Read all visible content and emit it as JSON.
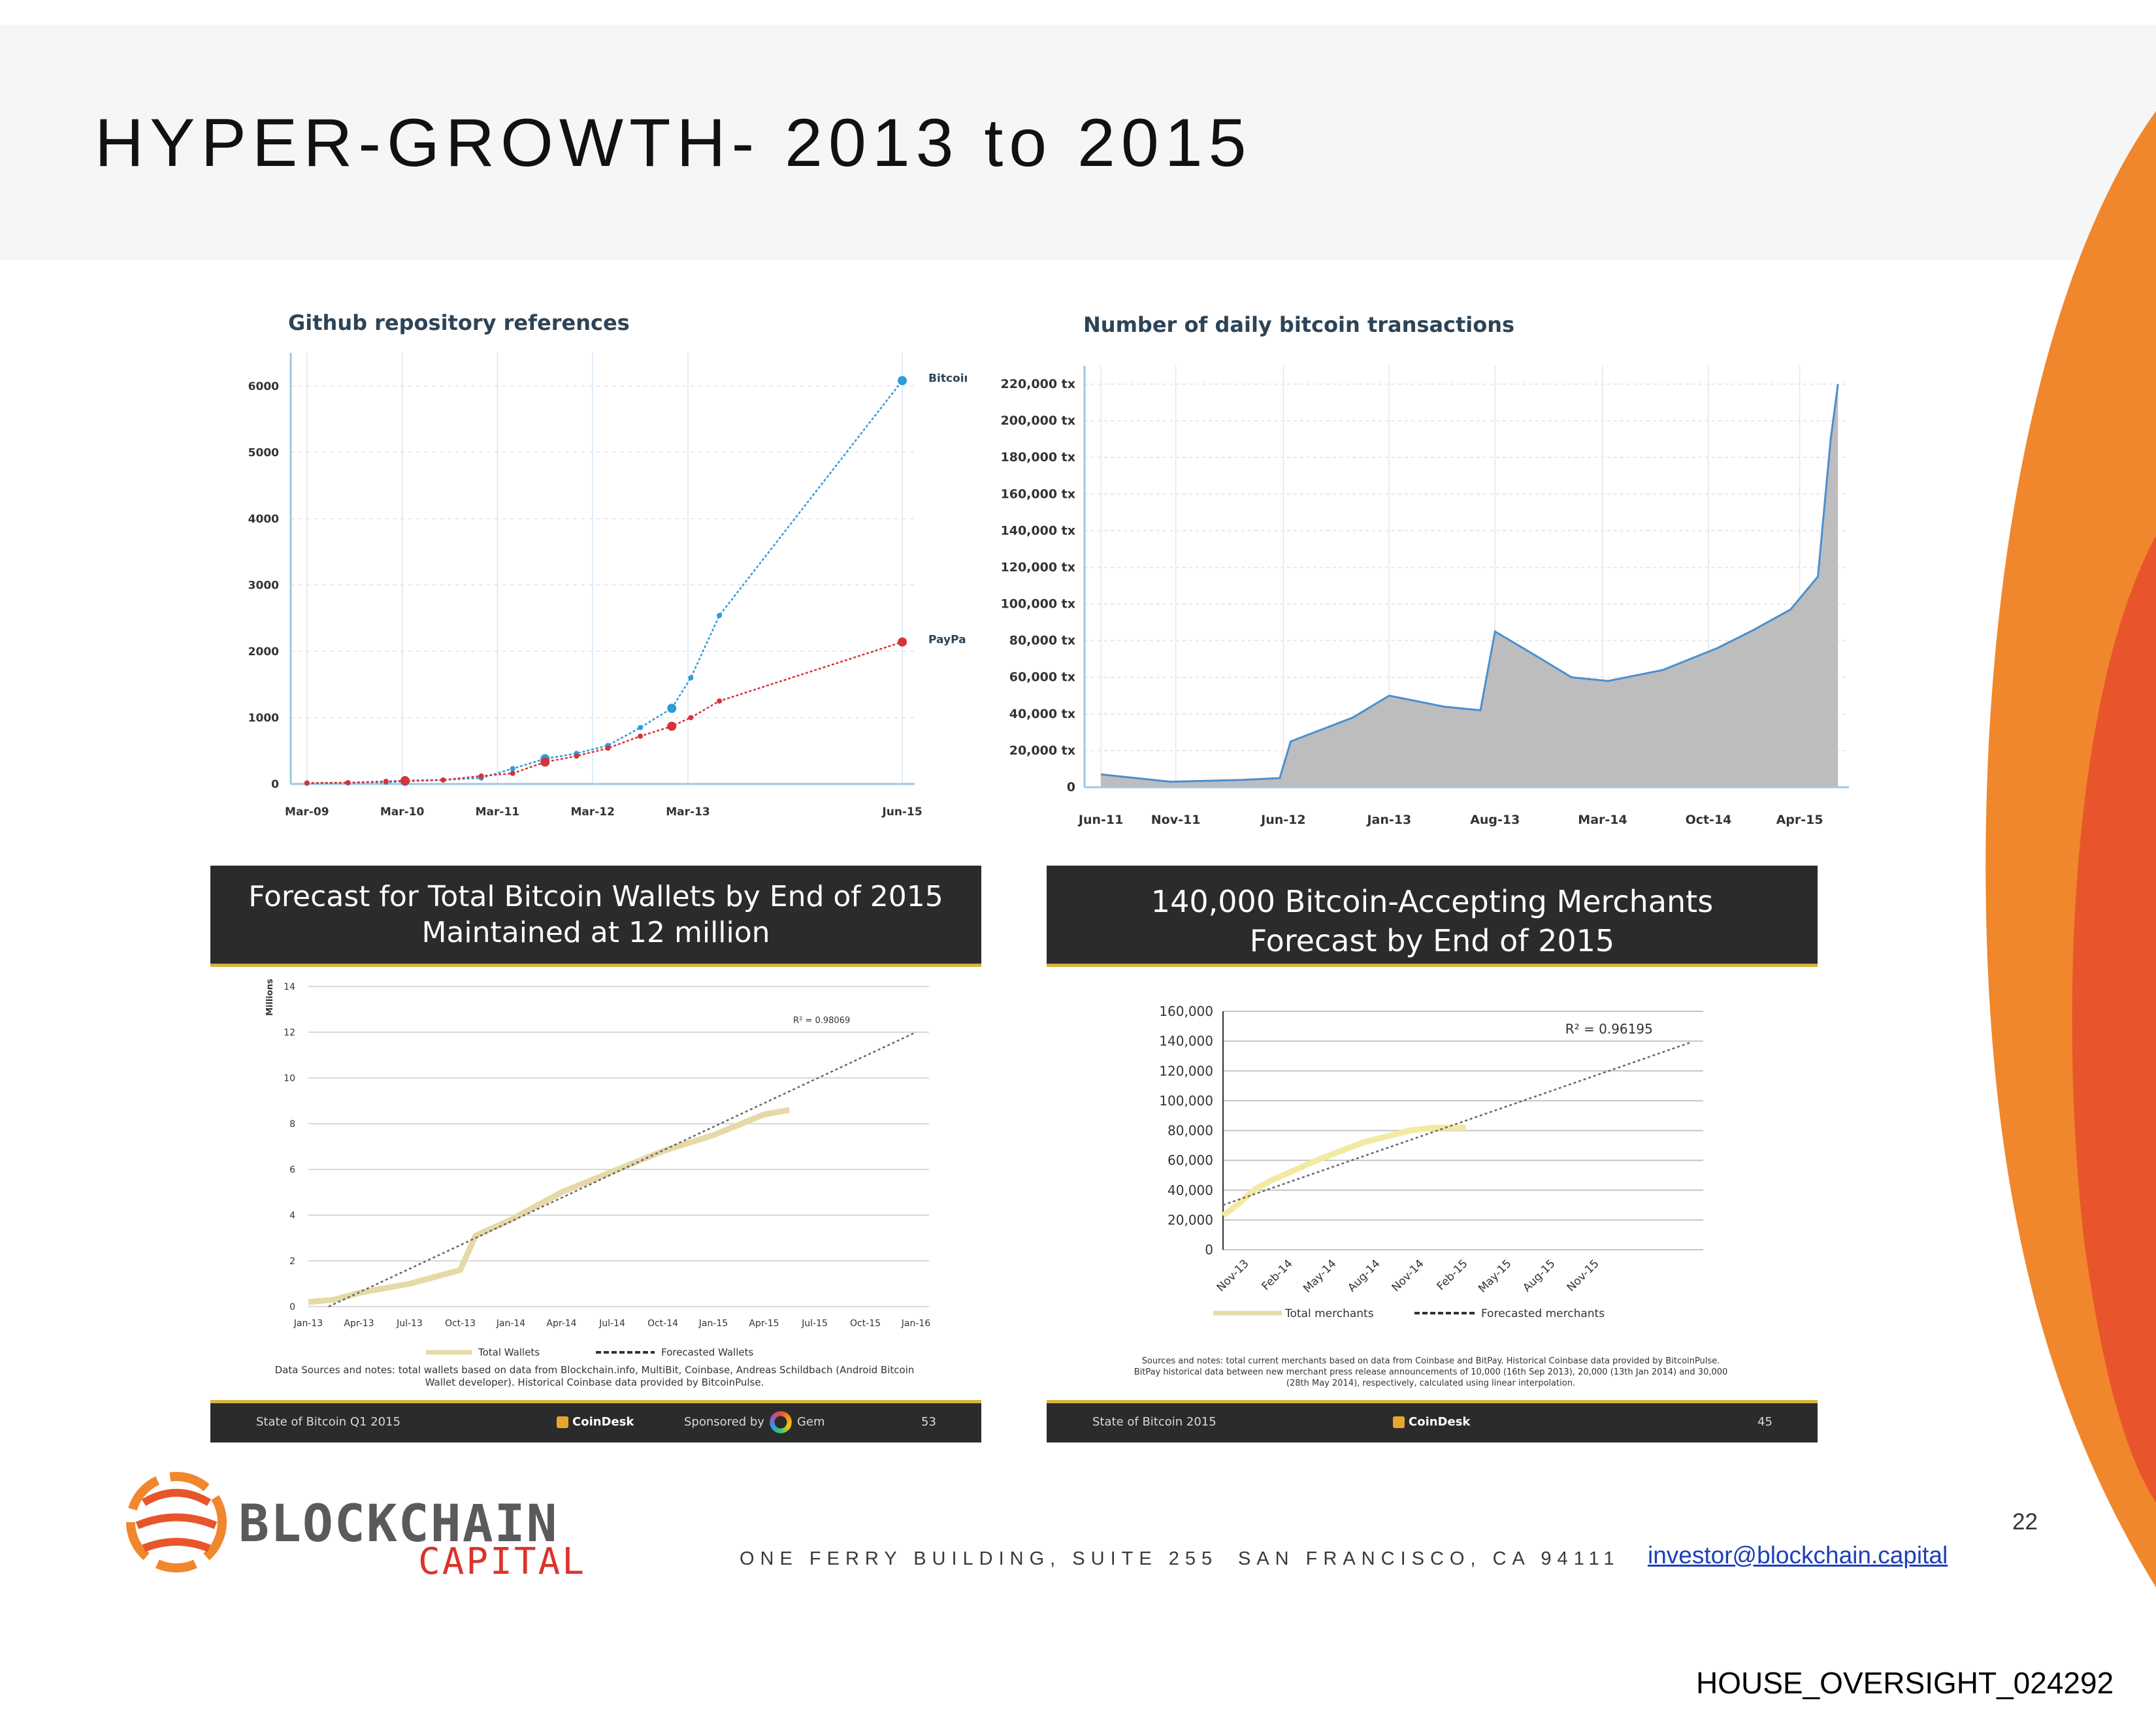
{
  "slide": {
    "title": "HYPER-GROWTH- 2013 to 2015",
    "page_number": "22",
    "doc_id": "HOUSE_OVERSIGHT_024292"
  },
  "colors": {
    "orange": "#f0872c",
    "red_orange": "#e8552c",
    "bitcoin_blue": "#2f9bd8",
    "paypal_red": "#d6333a",
    "gold": "#d7b23a",
    "dark_panel": "#2b2b2b"
  },
  "footer": {
    "logo_word1": "BLOCKCHAIN",
    "logo_word2": "CAPITAL",
    "address1": "ONE FERRY BUILDING, SUITE 255",
    "address2": "SAN FRANCISCO, CA 94111",
    "email": "investor@blockchain.capital"
  },
  "chart_data": [
    {
      "type": "line",
      "title": "Github repository references",
      "x_tick_labels": [
        "Mar-09",
        "Mar-10",
        "Mar-11",
        "Mar-12",
        "Mar-13",
        "Jun-15"
      ],
      "y_tick_labels": [
        "0",
        "1000",
        "2000",
        "3000",
        "4000",
        "5000",
        "6000"
      ],
      "ylim": [
        0,
        6500
      ],
      "series": [
        {
          "name": "Bitcoin",
          "x": [
            2009.17,
            2009.6,
            2010.0,
            2010.2,
            2010.6,
            2011.0,
            2011.33,
            2011.67,
            2012.0,
            2012.33,
            2012.67,
            2013.0,
            2013.2,
            2013.5,
            2015.42
          ],
          "values": [
            10,
            15,
            25,
            40,
            60,
            90,
            230,
            380,
            460,
            580,
            850,
            1140,
            1600,
            2540,
            6080
          ]
        },
        {
          "name": "PayPal",
          "x": [
            2009.17,
            2009.6,
            2010.0,
            2010.2,
            2010.6,
            2011.0,
            2011.33,
            2011.67,
            2012.0,
            2012.33,
            2012.67,
            2013.0,
            2013.2,
            2013.5,
            2015.42
          ],
          "values": [
            15,
            20,
            40,
            50,
            60,
            120,
            160,
            330,
            420,
            540,
            720,
            870,
            1000,
            1250,
            2140
          ]
        }
      ]
    },
    {
      "type": "area",
      "title": "Number of daily bitcoin transactions",
      "x_tick_labels": [
        "Jun-11",
        "Nov-11",
        "Jun-12",
        "Jan-13",
        "Aug-13",
        "Mar-14",
        "Oct-14",
        "Apr-15"
      ],
      "y_tick_labels": [
        "0",
        "20,000 tx",
        "40,000 tx",
        "60,000 tx",
        "80,000 tx",
        "100,000 tx",
        "120,000 tx",
        "140,000 tx",
        "160,000 tx",
        "180,000 tx",
        "200,000 tx",
        "220,000 tx"
      ],
      "ylim": [
        0,
        230000
      ],
      "x": [
        2011.42,
        2011.8,
        2012.2,
        2012.4,
        2012.46,
        2012.8,
        2013.0,
        2013.3,
        2013.5,
        2013.58,
        2013.8,
        2014.0,
        2014.2,
        2014.5,
        2014.8,
        2015.0,
        2015.2,
        2015.35,
        2015.42,
        2015.46
      ],
      "values": [
        7000,
        3000,
        4000,
        5000,
        25000,
        38000,
        50000,
        44000,
        42000,
        85000,
        72000,
        60000,
        58000,
        64000,
        76000,
        86000,
        97000,
        115000,
        190000,
        220000
      ]
    },
    {
      "type": "line",
      "title_line1": "Forecast for Total Bitcoin Wallets by End of 2015",
      "title_line2": "Maintained at 12 million",
      "ylabel": "Millions",
      "annotation": "R² = 0.98069",
      "x_tick_labels": [
        "Jan-13",
        "Apr-13",
        "Jul-13",
        "Oct-13",
        "Jan-14",
        "Apr-14",
        "Jul-14",
        "Oct-14",
        "Jan-15",
        "Apr-15",
        "Jul-15",
        "Oct-15",
        "Jan-16"
      ],
      "y_tick_labels": [
        "0",
        "2",
        "4",
        "6",
        "8",
        "10",
        "12",
        "14"
      ],
      "ylim": [
        0,
        14
      ],
      "series": [
        {
          "name": "Total Wallets",
          "x": [
            0,
            0.5,
            1,
            1.5,
            2,
            2.5,
            3,
            3.3,
            4,
            4.5,
            5,
            6,
            7,
            8,
            9,
            9.5
          ],
          "values": [
            0.2,
            0.3,
            0.6,
            0.8,
            1.0,
            1.3,
            1.6,
            3.1,
            3.8,
            4.4,
            5.0,
            5.9,
            6.8,
            7.5,
            8.4,
            8.6
          ]
        },
        {
          "name": "Forecasted Wallets",
          "x": [
            0.4,
            12
          ],
          "values": [
            0,
            12
          ]
        }
      ],
      "sources_text": "Data Sources and notes: total wallets based on data from Blockchain.info, MultiBit, Coinbase, Andreas Schildbach (Android Bitcoin Wallet developer). Historical Coinbase data provided by BitcoinPulse.",
      "footer_left": "State of Bitcoin Q1 2015",
      "footer_brand": "CoinDesk",
      "footer_sponsor": "Sponsored by",
      "footer_sponsor_name": "Gem",
      "footer_page": "53"
    },
    {
      "type": "line",
      "title_line1": "140,000 Bitcoin-Accepting Merchants",
      "title_line2": "Forecast by End of 2015",
      "annotation": "R² = 0.96195",
      "x_tick_labels": [
        "Nov-13",
        "Feb-14",
        "May-14",
        "Aug-14",
        "Nov-14",
        "Feb-15",
        "May-15",
        "Aug-15",
        "Nov-15"
      ],
      "y_tick_labels": [
        "0",
        "20,000",
        "40,000",
        "60,000",
        "80,000",
        "100,000",
        "120,000",
        "140,000",
        "160,000"
      ],
      "ylim": [
        0,
        160000
      ],
      "series": [
        {
          "name": "Total merchants",
          "x": [
            0,
            0.3,
            0.7,
            1,
            1.5,
            2,
            2.5,
            3,
            3.5,
            4,
            4.5,
            5.2
          ],
          "values": [
            23000,
            30000,
            41000,
            46000,
            53000,
            60000,
            66000,
            72000,
            76000,
            80000,
            82000,
            82000
          ]
        },
        {
          "name": "Forecasted merchants",
          "x": [
            0,
            10
          ],
          "values": [
            30000,
            139000
          ]
        }
      ],
      "sources_text1": "Sources and notes: total current merchants based on data from Coinbase and BitPay. Historical Coinbase data provided by BitcoinPulse.",
      "sources_text2": "BitPay historical data between new merchant press release announcements of 10,000 (16th Sep 2013), 20,000 (13th Jan 2014) and 30,000",
      "sources_text3": "(28th May 2014), respectively, calculated using linear interpolation.",
      "footer_left": "State of Bitcoin 2015",
      "footer_brand": "CoinDesk",
      "footer_page": "45"
    }
  ]
}
